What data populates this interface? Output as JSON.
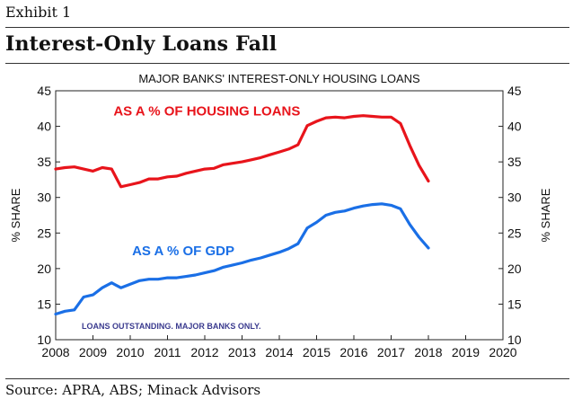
{
  "exhibit_label": "Exhibit 1",
  "headline": "Interest-Only Loans Fall",
  "source": "Source: APRA, ABS; Minack Advisors",
  "chart_data": {
    "type": "line",
    "title": "MAJOR BANKS' INTEREST-ONLY HOUSING LOANS",
    "ylabel_left": "% SHARE",
    "ylabel_right": "% SHARE",
    "xlim": [
      2008,
      2020
    ],
    "ylim": [
      10,
      45
    ],
    "xticks": [
      2008,
      2009,
      2010,
      2011,
      2012,
      2013,
      2014,
      2015,
      2016,
      2017,
      2018,
      2019,
      2020
    ],
    "yticks": [
      10,
      15,
      20,
      25,
      30,
      35,
      40,
      45
    ],
    "grid": false,
    "annotation": "LOANS OUTSTANDING.  MAJOR BANKS ONLY.",
    "series": [
      {
        "name": "AS A % OF HOUSING LOANS",
        "color": "#e8141b",
        "x": [
          2008.0,
          2008.25,
          2008.5,
          2008.75,
          2009.0,
          2009.25,
          2009.5,
          2009.75,
          2010.0,
          2010.25,
          2010.5,
          2010.75,
          2011.0,
          2011.25,
          2011.5,
          2011.75,
          2012.0,
          2012.25,
          2012.5,
          2012.75,
          2013.0,
          2013.25,
          2013.5,
          2013.75,
          2014.0,
          2014.25,
          2014.5,
          2014.75,
          2015.0,
          2015.25,
          2015.5,
          2015.75,
          2016.0,
          2016.25,
          2016.5,
          2016.75,
          2017.0,
          2017.25,
          2017.5,
          2017.75,
          2018.0
        ],
        "y": [
          34.0,
          34.2,
          34.3,
          34.0,
          33.7,
          34.2,
          34.0,
          31.5,
          31.8,
          32.1,
          32.6,
          32.6,
          32.9,
          33.0,
          33.4,
          33.7,
          34.0,
          34.1,
          34.6,
          34.8,
          35.0,
          35.3,
          35.6,
          36.0,
          36.4,
          36.8,
          37.4,
          40.1,
          40.7,
          41.2,
          41.3,
          41.2,
          41.4,
          41.5,
          41.4,
          41.3,
          41.3,
          40.4,
          37.3,
          34.5,
          32.3
        ]
      },
      {
        "name": "AS A % OF GDP",
        "color": "#1a6fe6",
        "x": [
          2008.0,
          2008.25,
          2008.5,
          2008.75,
          2009.0,
          2009.25,
          2009.5,
          2009.75,
          2010.0,
          2010.25,
          2010.5,
          2010.75,
          2011.0,
          2011.25,
          2011.5,
          2011.75,
          2012.0,
          2012.25,
          2012.5,
          2012.75,
          2013.0,
          2013.25,
          2013.5,
          2013.75,
          2014.0,
          2014.25,
          2014.5,
          2014.75,
          2015.0,
          2015.25,
          2015.5,
          2015.75,
          2016.0,
          2016.25,
          2016.5,
          2016.75,
          2017.0,
          2017.25,
          2017.5,
          2017.75,
          2018.0
        ],
        "y": [
          13.6,
          14.0,
          14.2,
          16.0,
          16.3,
          17.3,
          18.0,
          17.3,
          17.8,
          18.3,
          18.5,
          18.5,
          18.7,
          18.7,
          18.9,
          19.1,
          19.4,
          19.7,
          20.2,
          20.5,
          20.8,
          21.2,
          21.5,
          21.9,
          22.3,
          22.8,
          23.5,
          25.7,
          26.5,
          27.5,
          27.9,
          28.1,
          28.5,
          28.8,
          29.0,
          29.1,
          28.9,
          28.4,
          26.2,
          24.4,
          22.9
        ]
      }
    ]
  }
}
